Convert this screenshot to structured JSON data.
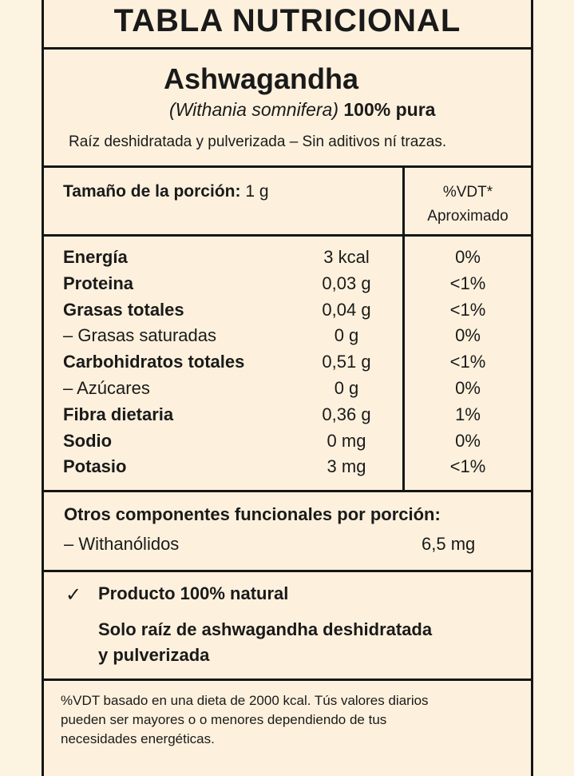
{
  "header": {
    "title": "TABLA NUTRICIONAL"
  },
  "product": {
    "name": "Ashwagandha",
    "scientific_name": "(Withania somnifera)",
    "purity": "100% pura",
    "description": "Raíz deshidratada y pulverizada  – Sin aditivos ní trazas."
  },
  "serving": {
    "label": "Tamaño de la porción:",
    "value": "1 g",
    "vdt_header": "%VDT*",
    "vdt_subheader": "Aproximado"
  },
  "nutrients": [
    {
      "name": "Energía",
      "value": "3 kcal",
      "vdt": "0%",
      "bold": true
    },
    {
      "name": "Proteina",
      "value": "0,03 g",
      "vdt": "<1%",
      "bold": true
    },
    {
      "name": "Grasas totales",
      "value": "0,04 g",
      "vdt": "<1%",
      "bold": true
    },
    {
      "name": "– Grasas saturadas",
      "value": "0 g",
      "vdt": "0%",
      "bold": false
    },
    {
      "name": "Carbohidratos totales",
      "value": "0,51 g",
      "vdt": "<1%",
      "bold": true
    },
    {
      "name": "– Azúcares",
      "value": "0 g",
      "vdt": "0%",
      "bold": false
    },
    {
      "name": "Fibra dietaria",
      "value": "0,36 g",
      "vdt": "1%",
      "bold": true
    },
    {
      "name": "Sodio",
      "value": "0 mg",
      "vdt": "0%",
      "bold": true
    },
    {
      "name": "Potasio",
      "value": "3 mg",
      "vdt": "<1%",
      "bold": true
    }
  ],
  "other_components": {
    "heading": "Otros componentes funcionales por porción:",
    "items": [
      {
        "name": "– Withanólidos",
        "value": "6,5 mg"
      }
    ]
  },
  "natural": {
    "check_icon": "✓",
    "line1": "Producto 100% natural",
    "line2": "Solo raíz de ashwagandha deshidratada y pulverizada"
  },
  "footnote": "%VDT basado en una dieta de 2000 kcal. Tús valores diarios pueden ser mayores o o menores dependiendo de tus necesidades energéticas."
}
